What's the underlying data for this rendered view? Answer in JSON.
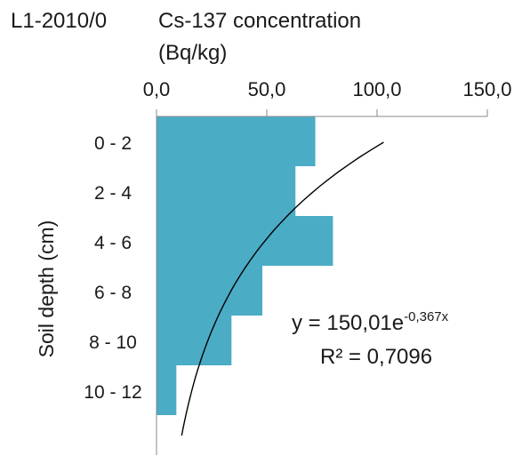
{
  "chart_data": {
    "type": "bar",
    "orientation": "horizontal",
    "panel_label": "L1-2010/0",
    "title_lines": [
      "Cs-137 concentration",
      "(Bq/kg)"
    ],
    "xaxis": {
      "position": "top",
      "range": [
        0,
        150
      ],
      "ticks": [
        "0,0",
        "50,0",
        "100,0",
        "150,0"
      ],
      "tick_values": [
        0,
        50,
        100,
        150
      ]
    },
    "ylabel": "Soil depth (cm)",
    "categories": [
      "0 - 2",
      "2 - 4",
      "4 - 6",
      "6 - 8",
      "8 - 10",
      "10 - 12"
    ],
    "values": [
      72,
      63,
      80,
      48,
      34,
      9
    ],
    "bar_color": "#4bacc6",
    "trendline": {
      "type": "exponential",
      "equation": "y = 150,01e",
      "exponent": "-0,367x",
      "r2": "R² = 0,7096"
    },
    "grid": false
  }
}
